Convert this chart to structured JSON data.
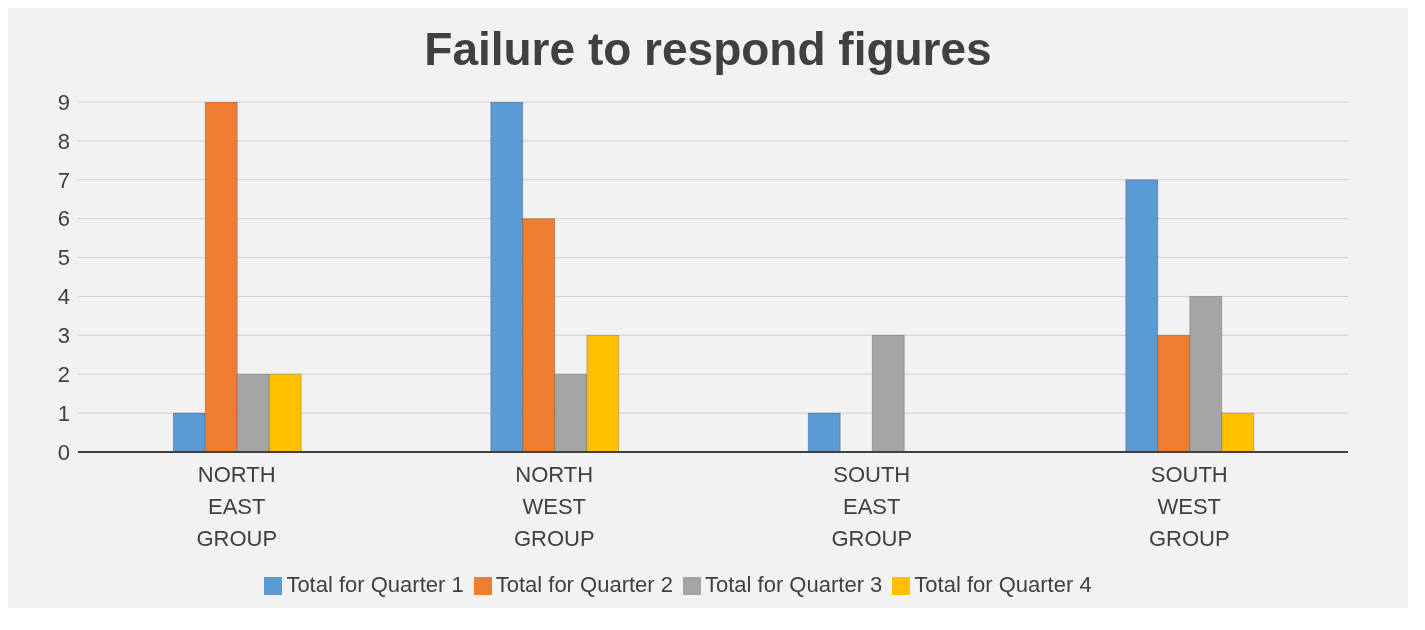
{
  "chart_data": {
    "type": "bar",
    "title": "Failure to respond figures",
    "categories": [
      "NORTH EAST GROUP",
      "NORTH WEST GROUP",
      "SOUTH EAST GROUP",
      "SOUTH WEST GROUP"
    ],
    "series": [
      {
        "name": "Total for Quarter 1",
        "color": "#5b9bd5",
        "values": [
          1,
          9,
          1,
          7
        ]
      },
      {
        "name": "Total for Quarter 2",
        "color": "#ed7d31",
        "values": [
          9,
          6,
          0,
          3
        ]
      },
      {
        "name": "Total for Quarter 3",
        "color": "#a5a5a5",
        "values": [
          2,
          2,
          3,
          4
        ]
      },
      {
        "name": "Total for Quarter 4",
        "color": "#ffc000",
        "values": [
          2,
          3,
          0,
          1
        ]
      }
    ],
    "ylim": [
      0,
      9
    ],
    "yticks": [
      0,
      1,
      2,
      3,
      4,
      5,
      6,
      7,
      8,
      9
    ],
    "grid": "y",
    "legend": "bottom"
  }
}
